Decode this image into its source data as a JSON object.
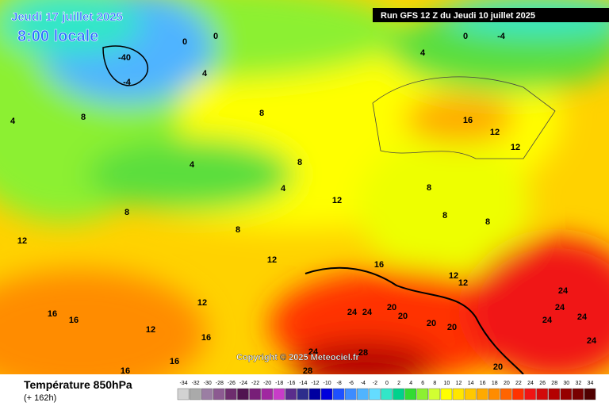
{
  "header": {
    "date": "Jeudi 17 juillet 2025",
    "time": "8:00 locale",
    "run": "Run GFS 12 Z du Jeudi 10 juillet 2025"
  },
  "copyright": "Copyright © 2025 Meteociel.fr",
  "footer": {
    "title": "Température 850hPa",
    "subtitle": "(+ 162h)"
  },
  "map": {
    "labels": [
      "0",
      "0",
      "-40",
      "-4",
      "4",
      "8",
      "4",
      "8",
      "4",
      "8",
      "8",
      "12",
      "12",
      "12",
      "16",
      "16",
      "12",
      "16",
      "16",
      "16",
      "4",
      "8",
      "4",
      "0",
      "-4",
      "16",
      "12",
      "12",
      "8",
      "8",
      "8",
      "12",
      "16",
      "12",
      "12",
      "24",
      "24",
      "24",
      "24",
      "24",
      "24",
      "24",
      "20",
      "20",
      "20",
      "20",
      "28",
      "24",
      "28",
      "20"
    ]
  },
  "scale": [
    {
      "label": "-34",
      "color": "#d2d2d2"
    },
    {
      "label": "-32",
      "color": "#aaaaaa"
    },
    {
      "label": "-30",
      "color": "#9b7ea3"
    },
    {
      "label": "-28",
      "color": "#8c5a91"
    },
    {
      "label": "-26",
      "color": "#6e2d6e"
    },
    {
      "label": "-24",
      "color": "#501450"
    },
    {
      "label": "-22",
      "color": "#781e78"
    },
    {
      "label": "-20",
      "color": "#a028a0"
    },
    {
      "label": "-18",
      "color": "#c83cc8"
    },
    {
      "label": "-16",
      "color": "#5a2d8c"
    },
    {
      "label": "-14",
      "color": "#2d2d8c"
    },
    {
      "label": "-12",
      "color": "#0000a0"
    },
    {
      "label": "-10",
      "color": "#0000dc"
    },
    {
      "label": "-8",
      "color": "#1e50ff"
    },
    {
      "label": "-6",
      "color": "#3c8cff"
    },
    {
      "label": "-4",
      "color": "#50b4ff"
    },
    {
      "label": "-2",
      "color": "#64dcff"
    },
    {
      "label": "0",
      "color": "#32e6c8"
    },
    {
      "label": "2",
      "color": "#00d28c"
    },
    {
      "label": "4",
      "color": "#32dc32"
    },
    {
      "label": "6",
      "color": "#8cf032"
    },
    {
      "label": "8",
      "color": "#d2ff32"
    },
    {
      "label": "10",
      "color": "#ffff00"
    },
    {
      "label": "12",
      "color": "#ffe600"
    },
    {
      "label": "14",
      "color": "#ffc800"
    },
    {
      "label": "16",
      "color": "#ffaa00"
    },
    {
      "label": "18",
      "color": "#ff8c00"
    },
    {
      "label": "20",
      "color": "#ff6400"
    },
    {
      "label": "22",
      "color": "#ff3200"
    },
    {
      "label": "24",
      "color": "#f01414"
    },
    {
      "label": "26",
      "color": "#d20a0a"
    },
    {
      "label": "28",
      "color": "#b40000"
    },
    {
      "label": "30",
      "color": "#960000"
    },
    {
      "label": "32",
      "color": "#780000"
    },
    {
      "label": "34",
      "color": "#500000"
    }
  ]
}
